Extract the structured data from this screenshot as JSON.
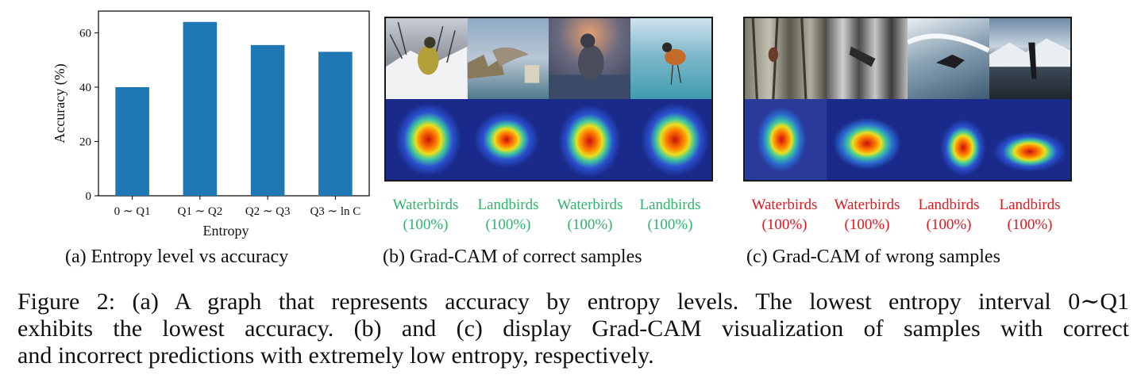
{
  "chart_data": {
    "type": "bar",
    "categories": [
      "0 ∼ Q1",
      "Q1 ∼ Q2",
      "Q2 ∼ Q3",
      "Q3 ∼ ln C"
    ],
    "values": [
      40,
      64,
      55.5,
      53
    ],
    "xlabel": "Entropy",
    "ylabel": "Accuracy (%)",
    "ylim": [
      0,
      68
    ],
    "yticks": [
      0,
      20,
      40,
      60
    ],
    "bar_color": "#1f77b4",
    "grid": false
  },
  "panel_a": {
    "caption": "(a) Entropy level vs accuracy"
  },
  "panel_b": {
    "caption": "(b) Grad-CAM of correct samples",
    "labels": [
      {
        "name": "Waterbirds",
        "pct": "(100%)"
      },
      {
        "name": "Landbirds",
        "pct": "(100%)"
      },
      {
        "name": "Waterbirds",
        "pct": "(100%)"
      },
      {
        "name": "Landbirds",
        "pct": "(100%)"
      }
    ],
    "label_color": "#2fb36a"
  },
  "panel_c": {
    "caption": "(c) Grad-CAM of wrong samples",
    "labels": [
      {
        "name": "Waterbirds",
        "pct": "(100%)"
      },
      {
        "name": "Waterbirds",
        "pct": "(100%)"
      },
      {
        "name": "Landbirds",
        "pct": "(100%)"
      },
      {
        "name": "Landbirds",
        "pct": "(100%)"
      }
    ],
    "label_color": "#e8141b"
  },
  "figure_caption": {
    "line1": "Figure 2: (a) A graph that represents accuracy by entropy levels. The lowest entropy interval 0∼Q1",
    "line2": "exhibits the lowest accuracy. (b) and (c) display Grad-CAM visualization of samples with correct",
    "line3": "and incorrect predictions with extremely low entropy, respectively."
  }
}
